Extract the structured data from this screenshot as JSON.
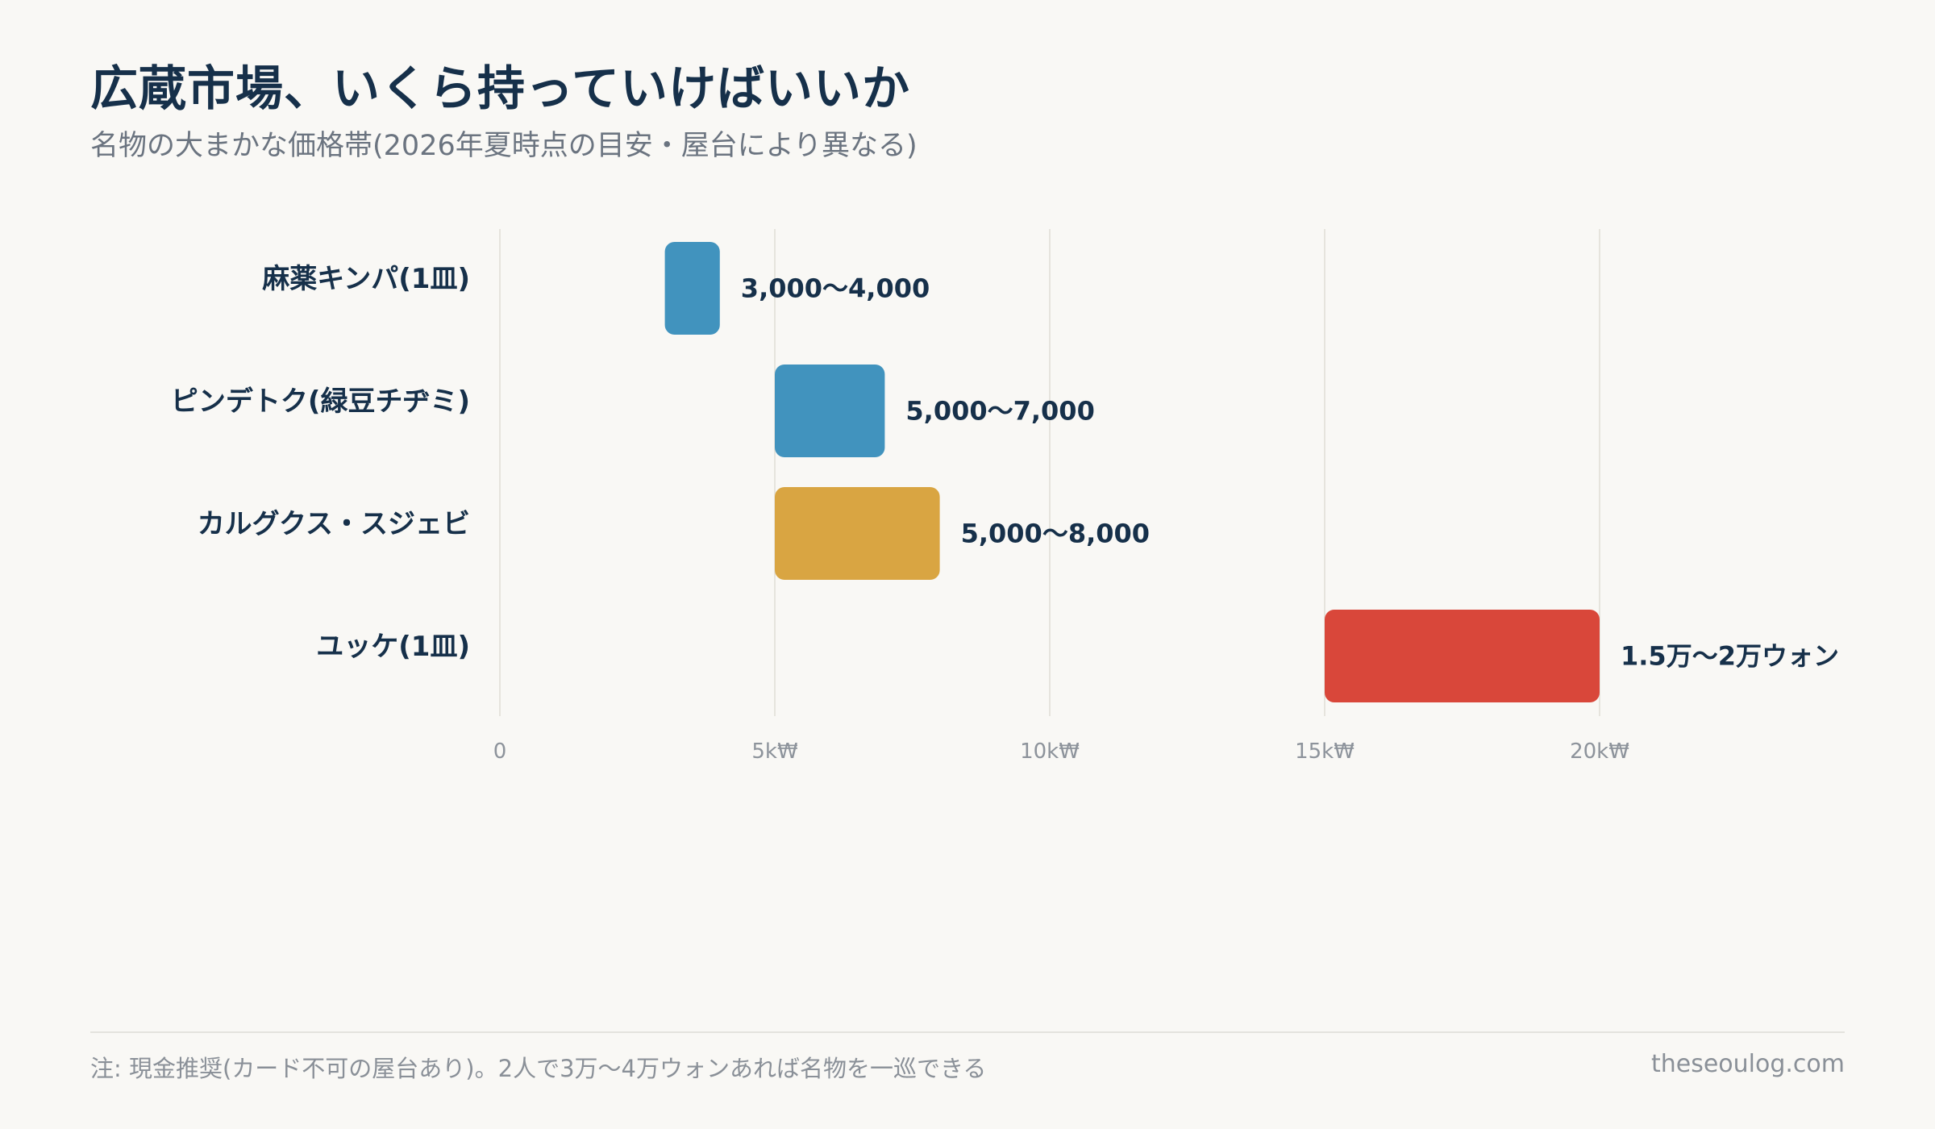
{
  "title": "広蔵市場、いくら持っていけばいいか",
  "subtitle": "名物の大まかな価格帯(2026年夏時点の目安・屋台により異なる)",
  "footnote": "注: 現金推奨(カード不可の屋台あり)。2人で3万〜4万ウォンあれば名物を一巡できる",
  "source": "theseoulog.com",
  "chart_data": {
    "type": "bar",
    "orientation": "horizontal",
    "categories": [
      "麻薬キンパ(1皿)",
      "ピンデトク(緑豆チヂミ)",
      "カルグクス・スジェビ",
      "ユッケ(1皿)"
    ],
    "ranges": [
      [
        3000,
        4000
      ],
      [
        5000,
        7000
      ],
      [
        5000,
        8000
      ],
      [
        15000,
        20000
      ]
    ],
    "labels": [
      "3,000〜4,000",
      "5,000〜7,000",
      "5,000〜8,000",
      "1.5万〜2万ウォン"
    ],
    "colors": [
      "#4193be",
      "#4193be",
      "#d9a542",
      "#d9473a"
    ],
    "xlim": [
      0,
      20000
    ],
    "xticks": [
      0,
      5000,
      10000,
      15000,
      20000
    ],
    "xtick_labels": [
      "0",
      "5k₩",
      "10k₩",
      "15k₩",
      "20k₩"
    ],
    "grid": "vertical"
  }
}
